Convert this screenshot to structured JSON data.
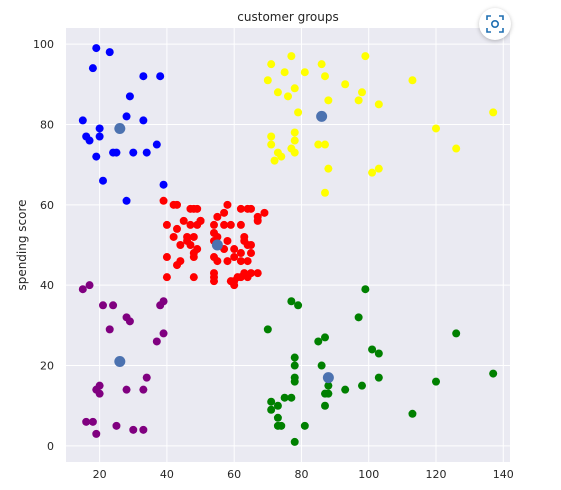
{
  "chart_data": {
    "type": "scatter",
    "title": "customer groups",
    "xlabel": "",
    "ylabel": "spending score",
    "xlim": [
      10,
      142
    ],
    "ylim": [
      -4,
      104
    ],
    "xticks": [
      20,
      40,
      60,
      80,
      100,
      120,
      140
    ],
    "yticks": [
      0,
      20,
      40,
      60,
      80,
      100
    ],
    "grid": true,
    "background": "#eaeaf2",
    "series": [
      {
        "color": "#ff0000",
        "points": [
          [
            39,
            61
          ],
          [
            40,
            55
          ],
          [
            40,
            47
          ],
          [
            40,
            42
          ],
          [
            42,
            60
          ],
          [
            42,
            52
          ],
          [
            43,
            60
          ],
          [
            43,
            54
          ],
          [
            43,
            45
          ],
          [
            44,
            50
          ],
          [
            44,
            46
          ],
          [
            45,
            56
          ],
          [
            46,
            52
          ],
          [
            46,
            51
          ],
          [
            47,
            59
          ],
          [
            47,
            55
          ],
          [
            47,
            50
          ],
          [
            48,
            59
          ],
          [
            48,
            52
          ],
          [
            48,
            48
          ],
          [
            48,
            47
          ],
          [
            48,
            42
          ],
          [
            49,
            59
          ],
          [
            49,
            55
          ],
          [
            49,
            49
          ],
          [
            50,
            56
          ],
          [
            50,
            56
          ],
          [
            54,
            55
          ],
          [
            54,
            53
          ],
          [
            54,
            51
          ],
          [
            54,
            47
          ],
          [
            54,
            43
          ],
          [
            54,
            41
          ],
          [
            54,
            42
          ],
          [
            55,
            57
          ],
          [
            55,
            52
          ],
          [
            55,
            46
          ],
          [
            57,
            58
          ],
          [
            57,
            55
          ],
          [
            57,
            49
          ],
          [
            58,
            60
          ],
          [
            58,
            51
          ],
          [
            58,
            46
          ],
          [
            59,
            55
          ],
          [
            59,
            41
          ],
          [
            60,
            49
          ],
          [
            60,
            47
          ],
          [
            60,
            41
          ],
          [
            60,
            40
          ],
          [
            61,
            42
          ],
          [
            62,
            59
          ],
          [
            62,
            55
          ],
          [
            62,
            48
          ],
          [
            62,
            46
          ],
          [
            62,
            42
          ],
          [
            63,
            52
          ],
          [
            63,
            43
          ],
          [
            63,
            51
          ],
          [
            64,
            59
          ],
          [
            64,
            50
          ],
          [
            64,
            46
          ],
          [
            64,
            42
          ],
          [
            65,
            48
          ],
          [
            65,
            50
          ],
          [
            65,
            59
          ],
          [
            65,
            43
          ],
          [
            67,
            56
          ],
          [
            67,
            57
          ],
          [
            67,
            43
          ],
          [
            69,
            58
          ]
        ]
      },
      {
        "color": "#0000ff",
        "points": [
          [
            15,
            81
          ],
          [
            16,
            77
          ],
          [
            17,
            76
          ],
          [
            18,
            94
          ],
          [
            19,
            99
          ],
          [
            19,
            72
          ],
          [
            20,
            79
          ],
          [
            20,
            77
          ],
          [
            21,
            66
          ],
          [
            23,
            98
          ],
          [
            24,
            73
          ],
          [
            25,
            73
          ],
          [
            28,
            82
          ],
          [
            28,
            61
          ],
          [
            29,
            87
          ],
          [
            30,
            73
          ],
          [
            33,
            92
          ],
          [
            33,
            81
          ],
          [
            34,
            73
          ],
          [
            37,
            75
          ],
          [
            38,
            92
          ],
          [
            39,
            65
          ]
        ]
      },
      {
        "color": "#ffff00",
        "points": [
          [
            70,
            91
          ],
          [
            71,
            77
          ],
          [
            71,
            75
          ],
          [
            71,
            95
          ],
          [
            72,
            71
          ],
          [
            73,
            88
          ],
          [
            73,
            73
          ],
          [
            74,
            72
          ],
          [
            75,
            93
          ],
          [
            76,
            87
          ],
          [
            77,
            97
          ],
          [
            77,
            74
          ],
          [
            78,
            78
          ],
          [
            78,
            73
          ],
          [
            78,
            76
          ],
          [
            78,
            89
          ],
          [
            79,
            83
          ],
          [
            81,
            93
          ],
          [
            85,
            75
          ],
          [
            86,
            95
          ],
          [
            87,
            92
          ],
          [
            87,
            75
          ],
          [
            87,
            63
          ],
          [
            88,
            86
          ],
          [
            88,
            69
          ],
          [
            93,
            90
          ],
          [
            97,
            86
          ],
          [
            98,
            88
          ],
          [
            99,
            97
          ],
          [
            101,
            68
          ],
          [
            103,
            69
          ],
          [
            103,
            85
          ],
          [
            113,
            91
          ],
          [
            120,
            79
          ],
          [
            126,
            74
          ],
          [
            137,
            83
          ]
        ]
      },
      {
        "color": "#800080",
        "points": [
          [
            15,
            39
          ],
          [
            16,
            6
          ],
          [
            17,
            40
          ],
          [
            18,
            6
          ],
          [
            19,
            3
          ],
          [
            19,
            14
          ],
          [
            20,
            15
          ],
          [
            20,
            13
          ],
          [
            21,
            35
          ],
          [
            23,
            29
          ],
          [
            24,
            35
          ],
          [
            25,
            5
          ],
          [
            28,
            14
          ],
          [
            28,
            32
          ],
          [
            29,
            31
          ],
          [
            30,
            4
          ],
          [
            33,
            4
          ],
          [
            33,
            14
          ],
          [
            34,
            17
          ],
          [
            37,
            26
          ],
          [
            38,
            35
          ],
          [
            39,
            36
          ],
          [
            39,
            28
          ]
        ]
      },
      {
        "color": "#008000",
        "points": [
          [
            70,
            29
          ],
          [
            71,
            11
          ],
          [
            71,
            9
          ],
          [
            73,
            5
          ],
          [
            73,
            7
          ],
          [
            73,
            10
          ],
          [
            74,
            5
          ],
          [
            75,
            12
          ],
          [
            77,
            36
          ],
          [
            77,
            12
          ],
          [
            78,
            1
          ],
          [
            78,
            22
          ],
          [
            78,
            20
          ],
          [
            78,
            17
          ],
          [
            78,
            16
          ],
          [
            79,
            35
          ],
          [
            81,
            5
          ],
          [
            85,
            26
          ],
          [
            86,
            20
          ],
          [
            87,
            13
          ],
          [
            87,
            10
          ],
          [
            87,
            27
          ],
          [
            88,
            13
          ],
          [
            88,
            15
          ],
          [
            93,
            14
          ],
          [
            97,
            32
          ],
          [
            98,
            15
          ],
          [
            99,
            39
          ],
          [
            101,
            24
          ],
          [
            103,
            17
          ],
          [
            103,
            23
          ],
          [
            113,
            8
          ],
          [
            120,
            16
          ],
          [
            126,
            28
          ],
          [
            137,
            18
          ]
        ]
      }
    ],
    "centroids": {
      "color": "#4c72b0",
      "points": [
        [
          26,
          79
        ],
        [
          86,
          82
        ],
        [
          55,
          50
        ],
        [
          26,
          21
        ],
        [
          88,
          17
        ]
      ]
    }
  }
}
